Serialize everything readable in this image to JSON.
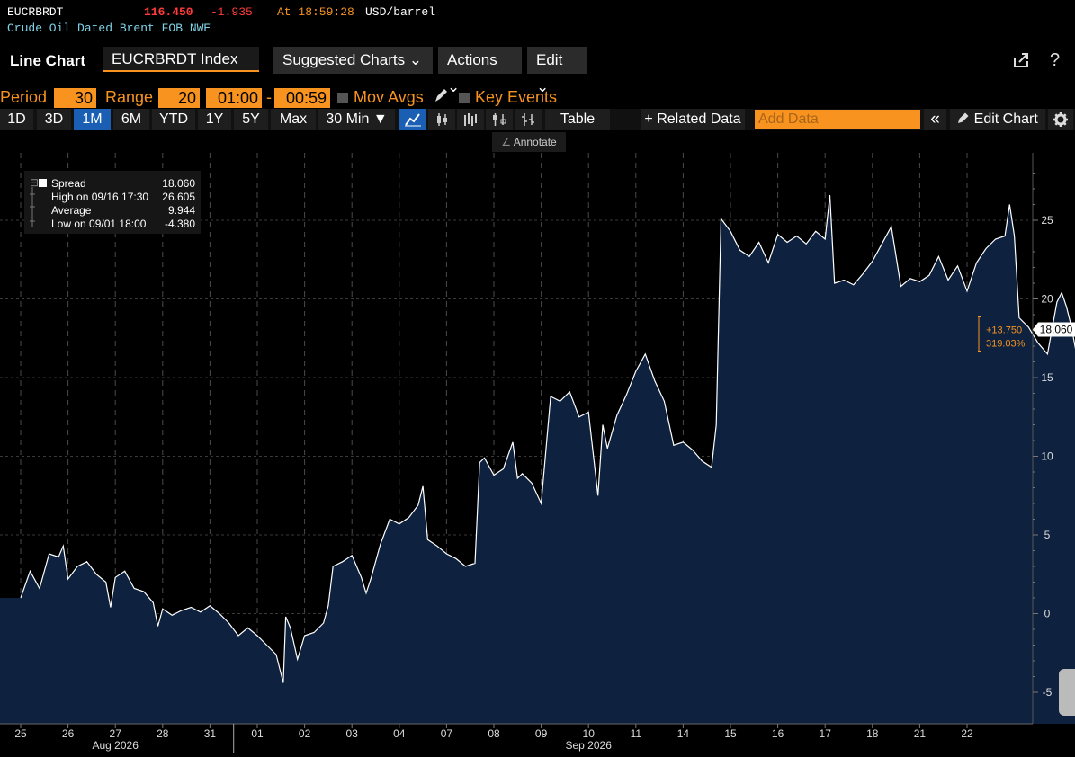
{
  "ticker": {
    "symbol": "EUCRBRDT",
    "price": "116.450",
    "change": "-1.935",
    "time": "At 18:59:28",
    "unit": "USD/barrel",
    "description": "Crude Oil Dated Brent FOB NWE"
  },
  "header": {
    "title": "Line Chart",
    "security": "EUCRBRDT Index",
    "suggested": "Suggested Charts ⌄",
    "actions": "Actions ⌄",
    "edit": "Edit ⌄",
    "help": "?"
  },
  "period_row": {
    "period_label": "Period",
    "period_value": "30",
    "range_label": "Range",
    "range_value": "20",
    "time_from": "01:00",
    "dash": "-",
    "time_to": "00:59",
    "mov_avgs": "Mov Avgs",
    "key_events": "Key Events"
  },
  "toolbar": {
    "ranges": [
      "1D",
      "3D",
      "1M",
      "6M",
      "YTD",
      "1Y",
      "5Y",
      "Max"
    ],
    "active_range": "1M",
    "interval": "30 Min ▼",
    "table": "Table",
    "related": "+ Related Data",
    "add_data_placeholder": "Add Data",
    "collapse": "«",
    "edit_chart": "Edit Chart",
    "annotate": "Annotate"
  },
  "legend": {
    "rows": [
      {
        "label": "Spread",
        "value": "18.060"
      },
      {
        "label": "High on 09/16 17:30",
        "value": "26.605"
      },
      {
        "label": "Average",
        "value": "9.944"
      },
      {
        "label": "Low on 09/01 18:00",
        "value": "-4.380"
      }
    ]
  },
  "colors": {
    "line": "#ffffff",
    "fill": "#0e2240",
    "accent": "#f7931e",
    "negative": "#ff3b3b",
    "active_tab": "#1a5fb4"
  },
  "chart_data": {
    "type": "area",
    "series": [
      {
        "name": "Spread"
      }
    ],
    "ylim": [
      -7,
      29
    ],
    "yticks": [
      -5,
      0,
      5,
      10,
      15,
      20,
      25
    ],
    "grid": true,
    "x_tick_labels": [
      "25",
      "26",
      "27",
      "28",
      "31",
      "01",
      "02",
      "03",
      "04",
      "07",
      "08",
      "09",
      "10",
      "11",
      "14",
      "15",
      "16",
      "17",
      "18",
      "21",
      "22"
    ],
    "x_month_labels": [
      "Aug 2026",
      "Sep 2026"
    ],
    "last_value": "18.060",
    "change_abs": "+13.750",
    "change_pct": "319.03%",
    "points": [
      [
        0,
        1.0
      ],
      [
        0.2,
        2.7
      ],
      [
        0.4,
        1.6
      ],
      [
        0.6,
        3.8
      ],
      [
        0.8,
        3.6
      ],
      [
        0.9,
        4.3
      ],
      [
        1.0,
        2.2
      ],
      [
        1.2,
        3.0
      ],
      [
        1.4,
        3.3
      ],
      [
        1.6,
        2.5
      ],
      [
        1.8,
        2.0
      ],
      [
        1.9,
        0.4
      ],
      [
        2.0,
        2.3
      ],
      [
        2.2,
        2.7
      ],
      [
        2.4,
        1.6
      ],
      [
        2.6,
        1.4
      ],
      [
        2.8,
        0.7
      ],
      [
        2.9,
        -0.8
      ],
      [
        3.0,
        0.3
      ],
      [
        3.2,
        -0.1
      ],
      [
        3.4,
        0.2
      ],
      [
        3.6,
        0.4
      ],
      [
        3.8,
        0.1
      ],
      [
        4.0,
        0.5
      ],
      [
        4.2,
        0.0
      ],
      [
        4.4,
        -0.6
      ],
      [
        4.6,
        -1.4
      ],
      [
        4.8,
        -0.9
      ],
      [
        5.0,
        -1.4
      ],
      [
        5.2,
        -2.0
      ],
      [
        5.4,
        -2.6
      ],
      [
        5.55,
        -4.4
      ],
      [
        5.6,
        -0.2
      ],
      [
        5.7,
        -0.9
      ],
      [
        5.85,
        -2.9
      ],
      [
        6.0,
        -1.4
      ],
      [
        6.2,
        -1.2
      ],
      [
        6.4,
        -0.6
      ],
      [
        6.5,
        0.5
      ],
      [
        6.6,
        3.0
      ],
      [
        6.8,
        3.3
      ],
      [
        7.0,
        3.7
      ],
      [
        7.2,
        2.3
      ],
      [
        7.3,
        1.3
      ],
      [
        7.4,
        2.2
      ],
      [
        7.6,
        4.4
      ],
      [
        7.8,
        6.0
      ],
      [
        8.0,
        5.7
      ],
      [
        8.2,
        6.1
      ],
      [
        8.4,
        6.9
      ],
      [
        8.5,
        8.1
      ],
      [
        8.6,
        4.7
      ],
      [
        8.8,
        4.3
      ],
      [
        9.0,
        3.8
      ],
      [
        9.2,
        3.5
      ],
      [
        9.4,
        3.0
      ],
      [
        9.6,
        3.2
      ],
      [
        9.7,
        9.6
      ],
      [
        9.8,
        9.9
      ],
      [
        10.0,
        8.8
      ],
      [
        10.2,
        9.2
      ],
      [
        10.4,
        10.9
      ],
      [
        10.5,
        8.6
      ],
      [
        10.6,
        8.9
      ],
      [
        10.8,
        8.3
      ],
      [
        11.0,
        7.0
      ],
      [
        11.2,
        13.8
      ],
      [
        11.4,
        13.5
      ],
      [
        11.6,
        14.1
      ],
      [
        11.8,
        12.5
      ],
      [
        12.0,
        12.8
      ],
      [
        12.2,
        7.5
      ],
      [
        12.3,
        12.0
      ],
      [
        12.4,
        10.5
      ],
      [
        12.6,
        12.6
      ],
      [
        12.8,
        13.9
      ],
      [
        13.0,
        15.4
      ],
      [
        13.2,
        16.5
      ],
      [
        13.4,
        14.8
      ],
      [
        13.6,
        13.5
      ],
      [
        13.8,
        10.7
      ],
      [
        14.0,
        10.9
      ],
      [
        14.2,
        10.4
      ],
      [
        14.4,
        9.7
      ],
      [
        14.6,
        9.3
      ],
      [
        14.7,
        12.0
      ],
      [
        14.8,
        25.1
      ],
      [
        15.0,
        24.3
      ],
      [
        15.2,
        23.1
      ],
      [
        15.4,
        22.7
      ],
      [
        15.6,
        23.6
      ],
      [
        15.8,
        22.3
      ],
      [
        16.0,
        24.1
      ],
      [
        16.2,
        23.6
      ],
      [
        16.4,
        24.0
      ],
      [
        16.6,
        23.5
      ],
      [
        16.8,
        24.3
      ],
      [
        17.0,
        23.8
      ],
      [
        17.1,
        26.6
      ],
      [
        17.2,
        21.0
      ],
      [
        17.4,
        21.2
      ],
      [
        17.6,
        20.9
      ],
      [
        17.8,
        21.6
      ],
      [
        18.0,
        22.4
      ],
      [
        18.2,
        23.5
      ],
      [
        18.4,
        24.6
      ],
      [
        18.6,
        20.8
      ],
      [
        18.8,
        21.3
      ],
      [
        19.0,
        21.1
      ],
      [
        19.2,
        21.5
      ],
      [
        19.4,
        22.7
      ],
      [
        19.6,
        21.2
      ],
      [
        19.8,
        22.1
      ],
      [
        20.0,
        20.5
      ],
      [
        20.2,
        22.3
      ],
      [
        20.4,
        23.2
      ],
      [
        20.6,
        23.8
      ],
      [
        20.8,
        24.0
      ],
      [
        20.9,
        26.0
      ],
      [
        21.0,
        24.0
      ],
      [
        21.1,
        18.8
      ],
      [
        21.3,
        18.2
      ],
      [
        21.5,
        17.2
      ],
      [
        21.7,
        16.5
      ],
      [
        21.9,
        19.8
      ],
      [
        22.0,
        20.4
      ],
      [
        22.1,
        19.5
      ],
      [
        22.2,
        18.3
      ],
      [
        22.3,
        16.7
      ],
      [
        22.4,
        18.5
      ],
      [
        22.47,
        18.06
      ]
    ]
  }
}
